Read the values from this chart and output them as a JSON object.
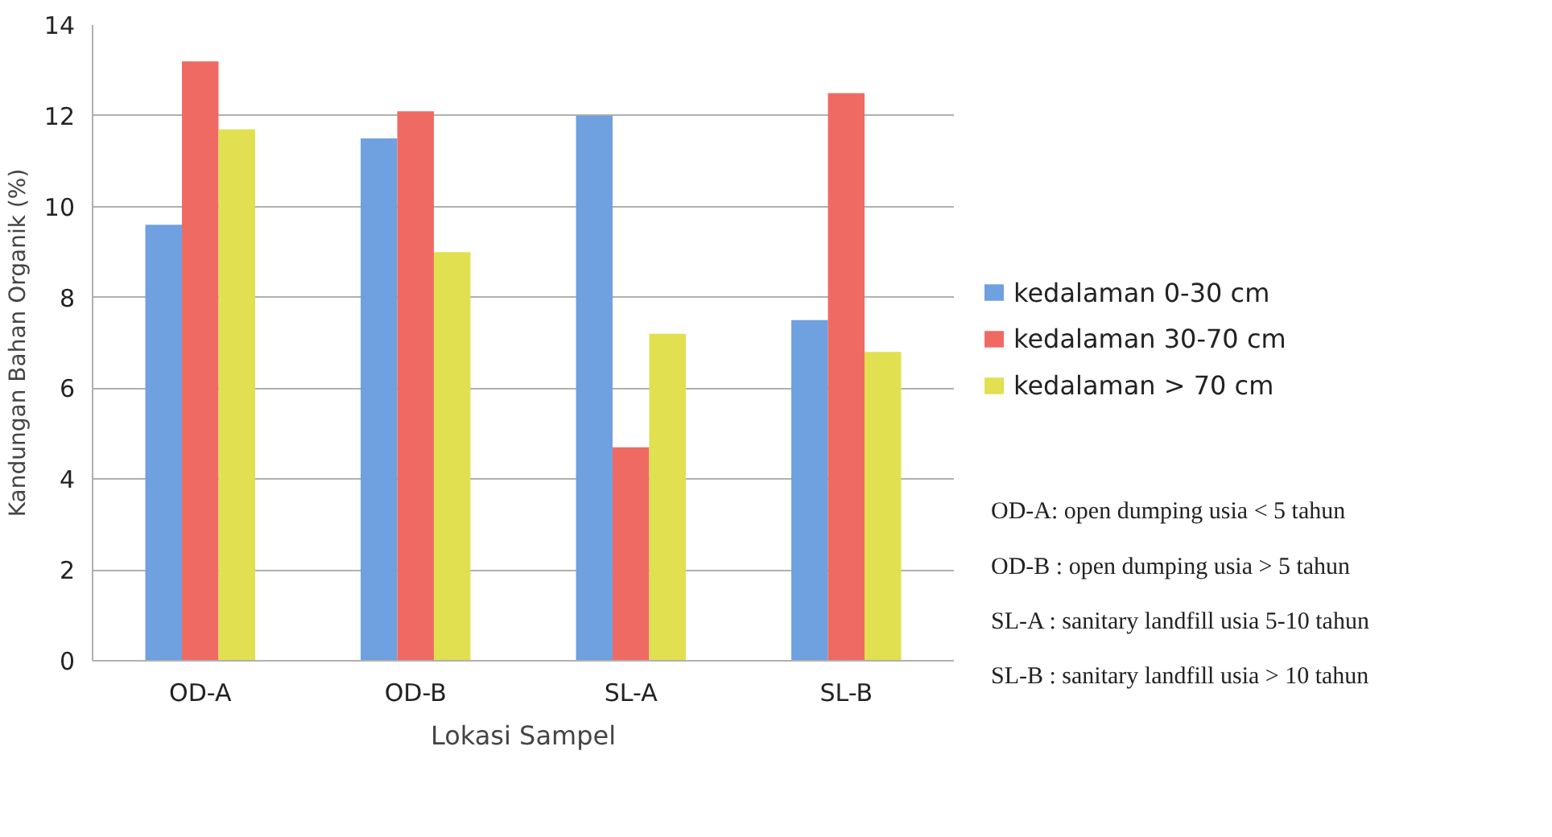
{
  "chart_data": {
    "type": "bar",
    "xlabel": "Lokasi Sampel",
    "ylabel": "Kandungan Bahan Organik (%)",
    "categories": [
      "OD-A",
      "OD-B",
      "SL-A",
      "SL-B"
    ],
    "series": [
      {
        "name": "kedalaman 0-30 cm",
        "color": "#6fa0e0",
        "values": [
          9.6,
          11.5,
          12.0,
          7.5
        ]
      },
      {
        "name": "kedalaman 30-70 cm",
        "color": "#f06a64",
        "values": [
          13.2,
          12.1,
          4.7,
          12.5
        ]
      },
      {
        "name": "kedalaman > 70 cm",
        "color": "#e0e050",
        "values": [
          11.7,
          9.0,
          7.2,
          6.8
        ]
      }
    ],
    "ylim": [
      0,
      14
    ],
    "yticks": [
      0,
      2,
      4,
      6,
      8,
      10,
      12,
      14
    ],
    "grid": "y",
    "legend": "right",
    "annotations": [
      "OD-A: open dumping usia < 5 tahun",
      "OD-B : open dumping usia > 5 tahun",
      "SL-A : sanitary landfill usia 5-10 tahun",
      "SL-B : sanitary landfill usia > 10 tahun"
    ]
  }
}
